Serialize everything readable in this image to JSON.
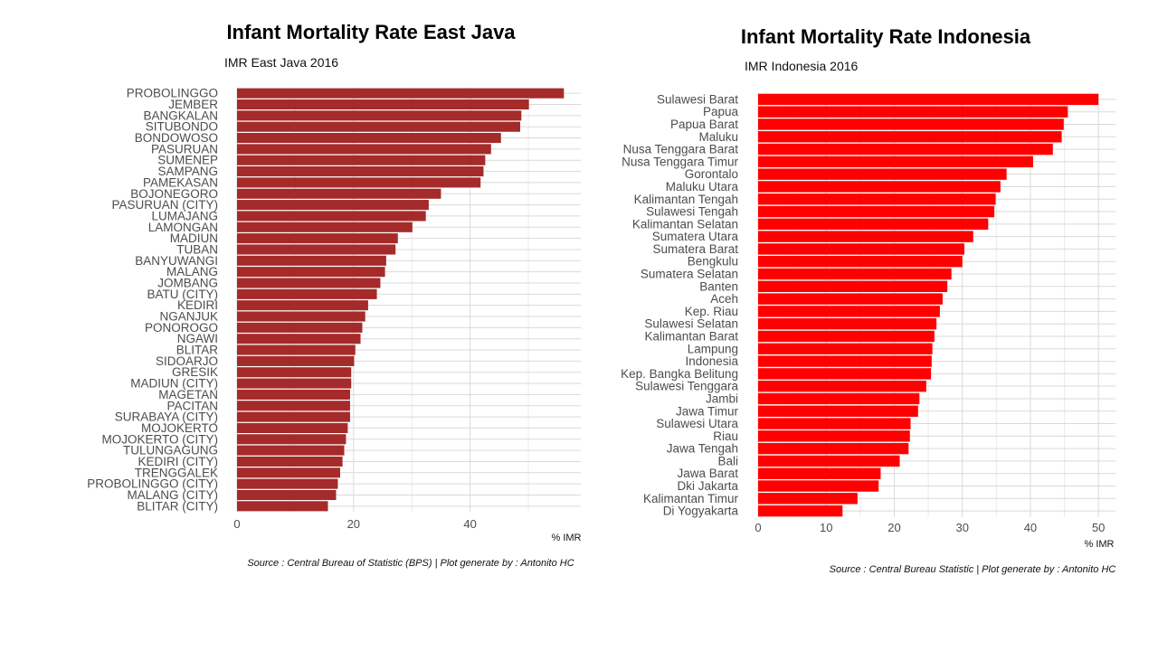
{
  "charts": [
    {
      "type": "bar",
      "orientation": "horizontal",
      "title": "Infant Mortality Rate East Java",
      "subtitle": "IMR East Java 2016",
      "xlabel": "% IMR",
      "caption": "Source : Central Bureau of Statistic (BPS) | Plot generate by : Antonito HC",
      "bar_color": "#a52a2a",
      "xlim": [
        0,
        59
      ],
      "xticks": [
        0,
        20,
        40
      ],
      "categories": [
        "PROBOLINGGO",
        "JEMBER",
        "BANGKALAN",
        "SITUBONDO",
        "BONDOWOSO",
        "PASURUAN",
        "SUMENEP",
        "SAMPANG",
        "PAMEKASAN",
        "BOJONEGORO",
        "PASURUAN (CITY)",
        "LUMAJANG",
        "LAMONGAN",
        "MADIUN",
        "TUBAN",
        "BANYUWANGI",
        "MALANG",
        "JOMBANG",
        "BATU (CITY)",
        "KEDIRI",
        "NGANJUK",
        "PONOROGO",
        "NGAWI",
        "BLITAR",
        "SIDOARJO",
        "GRESIK",
        "MADIUN (CITY)",
        "MAGETAN",
        "PACITAN",
        "SURABAYA (CITY)",
        "MOJOKERTO",
        "MOJOKERTO (CITY)",
        "TULUNGAGUNG",
        "KEDIRI (CITY)",
        "TRENGGALEK",
        "PROBOLINGGO (CITY)",
        "MALANG (CITY)",
        "BLITAR (CITY)"
      ],
      "values": [
        56.1,
        50.1,
        48.8,
        48.6,
        45.3,
        43.6,
        42.6,
        42.3,
        41.8,
        35.0,
        32.9,
        32.4,
        30.1,
        27.6,
        27.2,
        25.6,
        25.4,
        24.6,
        24.0,
        22.5,
        22.0,
        21.5,
        21.2,
        20.3,
        20.1,
        19.6,
        19.6,
        19.4,
        19.4,
        19.4,
        19.0,
        18.7,
        18.4,
        18.1,
        17.7,
        17.3,
        17.0,
        15.6
      ]
    },
    {
      "type": "bar",
      "orientation": "horizontal",
      "title": "Infant Mortality Rate Indonesia",
      "subtitle": "IMR Indonesia 2016",
      "xlabel": "% IMR",
      "caption": "Source : Central Bureau Statistic | Plot generate by : Antonito HC",
      "bar_color": "#ff0000",
      "xlim": [
        0,
        52.5
      ],
      "xticks": [
        0,
        10,
        20,
        30,
        40,
        50
      ],
      "categories": [
        "Sulawesi Barat",
        "Papua",
        "Papua Barat",
        "Maluku",
        "Nusa Tenggara Barat",
        "Nusa Tenggara Timur",
        "Gorontalo",
        "Maluku Utara",
        "Kalimantan Tengah",
        "Sulawesi Tengah",
        "Kalimantan Selatan",
        "Sumatera Utara",
        "Sumatera Barat",
        "Bengkulu",
        "Sumatera Selatan",
        "Banten",
        "Aceh",
        "Kep. Riau",
        "Sulawesi Selatan",
        "Kalimantan Barat",
        "Lampung",
        "Indonesia",
        "Kep. Bangka Belitung",
        "Sulawesi Tenggara",
        "Jambi",
        "Jawa Timur",
        "Sulawesi Utara",
        "Riau",
        "Jawa Tengah",
        "Bali",
        "Jawa Barat",
        "Dki Jakarta",
        "Kalimantan Timur",
        "Di Yogyakarta"
      ],
      "values": [
        50.0,
        45.5,
        44.9,
        44.6,
        43.3,
        40.4,
        36.5,
        35.6,
        34.9,
        34.7,
        33.8,
        31.6,
        30.3,
        30.0,
        28.4,
        27.8,
        27.1,
        26.7,
        26.2,
        25.9,
        25.6,
        25.5,
        25.4,
        24.7,
        23.7,
        23.5,
        22.4,
        22.3,
        22.1,
        20.8,
        18.0,
        17.7,
        14.6,
        12.4
      ]
    }
  ]
}
